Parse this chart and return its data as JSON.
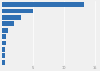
{
  "values": [
    13200,
    5000,
    3000,
    1900,
    900,
    700,
    600,
    550,
    500,
    480
  ],
  "bar_color": "#3070b3",
  "background_color": "#f0f0f0",
  "xlim": [
    0,
    15500
  ],
  "grid_color": "#ffffff",
  "bar_height": 0.75,
  "xtick_positions": [
    0,
    5000,
    10000,
    15000
  ],
  "xtick_labels": [
    "",
    "5",
    "10",
    "15"
  ]
}
